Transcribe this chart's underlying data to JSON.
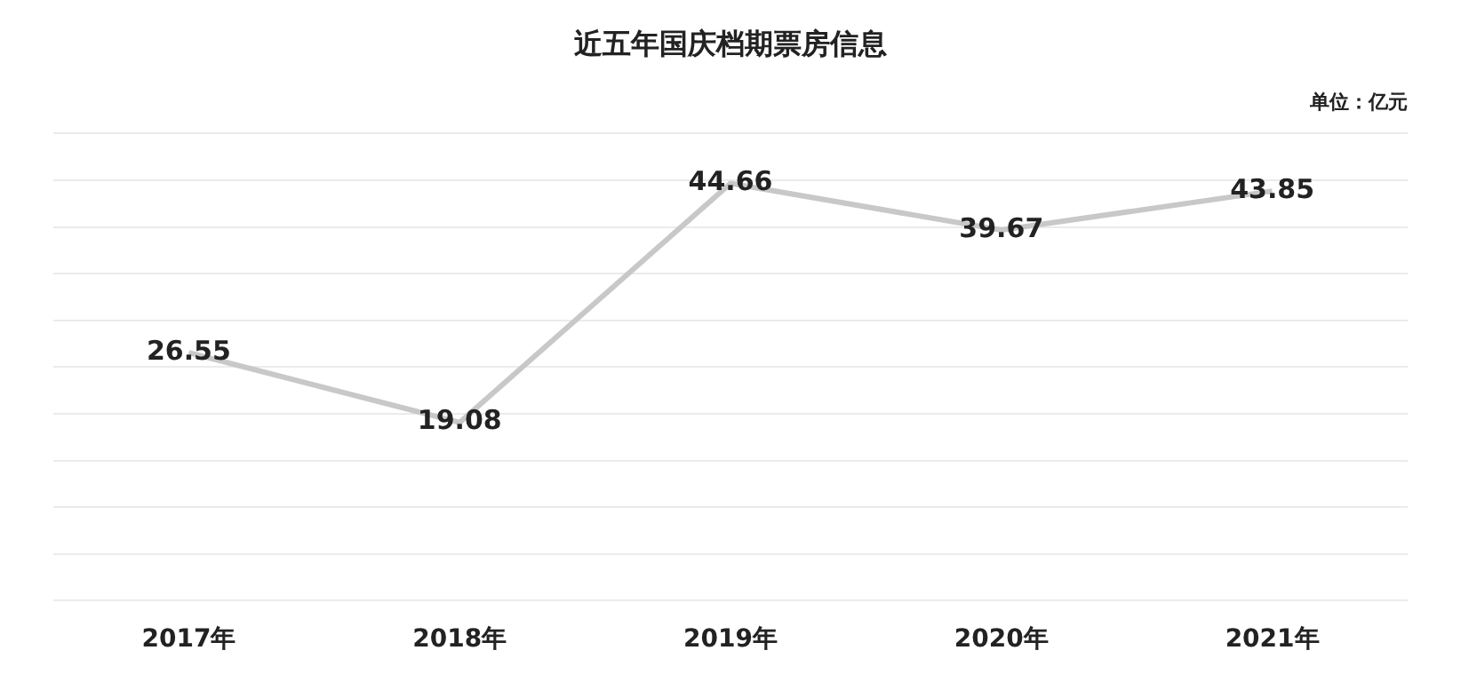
{
  "chart_data": {
    "type": "line",
    "title": "近五年国庆档期票房信息",
    "annotations": [
      "单位：亿元"
    ],
    "categories": [
      "2017年",
      "2018年",
      "2019年",
      "2020年",
      "2021年"
    ],
    "series": [
      {
        "color": "#c8c8c8",
        "values": [
          26.55,
          19.08,
          44.66,
          39.67,
          43.85
        ]
      }
    ],
    "ylim": [
      0,
      50
    ],
    "yticks": [
      {
        "value": 0,
        "label": null
      },
      {
        "value": 5,
        "label": null
      },
      {
        "value": 10,
        "label": null
      },
      {
        "value": 15,
        "label": null
      },
      {
        "value": 20,
        "label": null
      },
      {
        "value": 25,
        "label": null
      },
      {
        "value": 30,
        "label": null
      },
      {
        "value": 35,
        "label": null
      },
      {
        "value": 40,
        "label": null
      },
      {
        "value": 45,
        "label": null
      },
      {
        "value": 50,
        "label": null
      }
    ],
    "tick_labels": "x",
    "grid": "y",
    "data_labels": true,
    "legend": false,
    "marker": "none",
    "line_style": "solid"
  }
}
